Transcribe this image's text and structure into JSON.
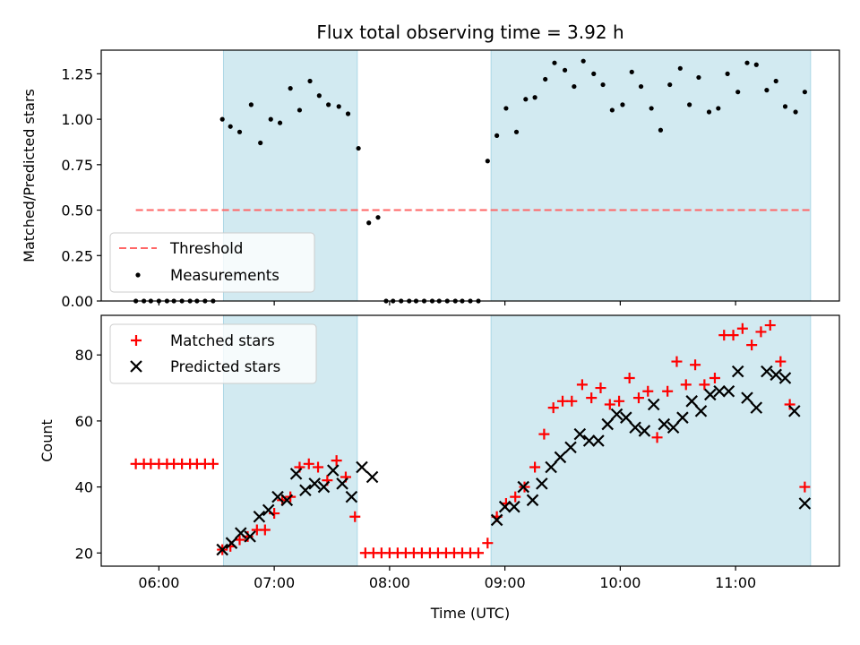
{
  "title": "Flux total observing time = 3.92 h",
  "colors": {
    "shade": "#add8e6",
    "threshold": "#ff6666",
    "matched": "#ff0000",
    "predicted": "#000000",
    "measurement": "#000000"
  },
  "x_axis": {
    "label": "Time (UTC)",
    "range_hours": [
      5.5,
      11.9
    ],
    "ticks": [
      {
        "value": 6,
        "label": "06:00"
      },
      {
        "value": 7,
        "label": "07:00"
      },
      {
        "value": 8,
        "label": "08:00"
      },
      {
        "value": 9,
        "label": "09:00"
      },
      {
        "value": 10,
        "label": "10:00"
      },
      {
        "value": 11,
        "label": "11:00"
      }
    ]
  },
  "chart_data": [
    {
      "type": "scatter",
      "panel": "top",
      "ylabel": "Matched/Predicted stars",
      "ylim": [
        0,
        1.38
      ],
      "yticks": [
        {
          "value": 0,
          "label": "0.00"
        },
        {
          "value": 0.25,
          "label": "0.25"
        },
        {
          "value": 0.5,
          "label": "0.50"
        },
        {
          "value": 0.75,
          "label": "0.75"
        },
        {
          "value": 1.0,
          "label": "1.00"
        },
        {
          "value": 1.25,
          "label": "1.25"
        }
      ],
      "shaded_intervals": [
        [
          6.56,
          7.72
        ],
        [
          8.88,
          11.65
        ]
      ],
      "legend_position": "lower-left",
      "threshold": {
        "name": "Threshold",
        "y": 0.5,
        "x": [
          5.8,
          11.65
        ]
      },
      "series": [
        {
          "name": "Measurements",
          "points": [
            [
              5.8,
              0
            ],
            [
              5.87,
              0
            ],
            [
              5.93,
              0
            ],
            [
              6.0,
              0
            ],
            [
              6.07,
              0
            ],
            [
              6.13,
              0
            ],
            [
              6.2,
              0
            ],
            [
              6.27,
              0
            ],
            [
              6.33,
              0
            ],
            [
              6.4,
              0
            ],
            [
              6.47,
              0
            ],
            [
              6.55,
              1.0
            ],
            [
              6.62,
              0.96
            ],
            [
              6.7,
              0.93
            ],
            [
              6.8,
              1.08
            ],
            [
              6.88,
              0.87
            ],
            [
              6.97,
              1.0
            ],
            [
              7.05,
              0.98
            ],
            [
              7.14,
              1.17
            ],
            [
              7.22,
              1.05
            ],
            [
              7.31,
              1.21
            ],
            [
              7.39,
              1.13
            ],
            [
              7.47,
              1.08
            ],
            [
              7.56,
              1.07
            ],
            [
              7.64,
              1.03
            ],
            [
              7.73,
              0.84
            ],
            [
              7.82,
              0.43
            ],
            [
              7.9,
              0.46
            ],
            [
              7.97,
              0
            ],
            [
              8.03,
              0
            ],
            [
              8.1,
              0
            ],
            [
              8.17,
              0
            ],
            [
              8.23,
              0
            ],
            [
              8.3,
              0
            ],
            [
              8.37,
              0
            ],
            [
              8.43,
              0
            ],
            [
              8.5,
              0
            ],
            [
              8.57,
              0
            ],
            [
              8.63,
              0
            ],
            [
              8.7,
              0
            ],
            [
              8.77,
              0
            ],
            [
              8.85,
              0.77
            ],
            [
              8.93,
              0.91
            ],
            [
              9.01,
              1.06
            ],
            [
              9.1,
              0.93
            ],
            [
              9.18,
              1.11
            ],
            [
              9.26,
              1.12
            ],
            [
              9.35,
              1.22
            ],
            [
              9.43,
              1.31
            ],
            [
              9.52,
              1.27
            ],
            [
              9.6,
              1.18
            ],
            [
              9.68,
              1.32
            ],
            [
              9.77,
              1.25
            ],
            [
              9.85,
              1.19
            ],
            [
              9.93,
              1.05
            ],
            [
              10.02,
              1.08
            ],
            [
              10.1,
              1.26
            ],
            [
              10.18,
              1.18
            ],
            [
              10.27,
              1.06
            ],
            [
              10.35,
              0.94
            ],
            [
              10.43,
              1.19
            ],
            [
              10.52,
              1.28
            ],
            [
              10.6,
              1.08
            ],
            [
              10.68,
              1.23
            ],
            [
              10.77,
              1.04
            ],
            [
              10.85,
              1.06
            ],
            [
              10.93,
              1.25
            ],
            [
              11.02,
              1.15
            ],
            [
              11.1,
              1.31
            ],
            [
              11.18,
              1.3
            ],
            [
              11.27,
              1.16
            ],
            [
              11.35,
              1.21
            ],
            [
              11.43,
              1.07
            ],
            [
              11.52,
              1.04
            ],
            [
              11.6,
              1.15
            ]
          ]
        }
      ]
    },
    {
      "type": "scatter",
      "panel": "bottom",
      "ylabel": "Count",
      "ylim": [
        16,
        92
      ],
      "yticks": [
        {
          "value": 20,
          "label": "20"
        },
        {
          "value": 40,
          "label": "40"
        },
        {
          "value": 60,
          "label": "60"
        },
        {
          "value": 80,
          "label": "80"
        }
      ],
      "shaded_intervals": [
        [
          6.56,
          7.72
        ],
        [
          8.88,
          11.65
        ]
      ],
      "legend_position": "upper-left",
      "series": [
        {
          "name": "Matched stars",
          "marker": "plus",
          "points": [
            [
              5.8,
              47
            ],
            [
              5.87,
              47
            ],
            [
              5.93,
              47
            ],
            [
              6.0,
              47
            ],
            [
              6.07,
              47
            ],
            [
              6.13,
              47
            ],
            [
              6.2,
              47
            ],
            [
              6.27,
              47
            ],
            [
              6.33,
              47
            ],
            [
              6.4,
              47
            ],
            [
              6.47,
              47
            ],
            [
              6.55,
              21
            ],
            [
              6.62,
              22
            ],
            [
              6.7,
              24
            ],
            [
              6.77,
              25
            ],
            [
              6.85,
              27
            ],
            [
              6.92,
              27
            ],
            [
              7.0,
              32
            ],
            [
              7.07,
              36
            ],
            [
              7.14,
              37
            ],
            [
              7.22,
              46
            ],
            [
              7.3,
              47
            ],
            [
              7.38,
              46
            ],
            [
              7.46,
              42
            ],
            [
              7.54,
              48
            ],
            [
              7.62,
              43
            ],
            [
              7.7,
              31
            ],
            [
              7.79,
              20
            ],
            [
              7.86,
              20
            ],
            [
              7.93,
              20
            ],
            [
              8.0,
              20
            ],
            [
              8.07,
              20
            ],
            [
              8.14,
              20
            ],
            [
              8.21,
              20
            ],
            [
              8.28,
              20
            ],
            [
              8.35,
              20
            ],
            [
              8.42,
              20
            ],
            [
              8.49,
              20
            ],
            [
              8.56,
              20
            ],
            [
              8.63,
              20
            ],
            [
              8.7,
              20
            ],
            [
              8.77,
              20
            ],
            [
              8.85,
              23
            ],
            [
              8.93,
              31
            ],
            [
              9.01,
              35
            ],
            [
              9.09,
              37
            ],
            [
              9.17,
              40
            ],
            [
              9.26,
              46
            ],
            [
              9.34,
              56
            ],
            [
              9.42,
              64
            ],
            [
              9.5,
              66
            ],
            [
              9.58,
              66
            ],
            [
              9.67,
              71
            ],
            [
              9.75,
              67
            ],
            [
              9.83,
              70
            ],
            [
              9.91,
              65
            ],
            [
              9.99,
              66
            ],
            [
              10.08,
              73
            ],
            [
              10.16,
              67
            ],
            [
              10.24,
              69
            ],
            [
              10.32,
              55
            ],
            [
              10.41,
              69
            ],
            [
              10.49,
              78
            ],
            [
              10.57,
              71
            ],
            [
              10.65,
              77
            ],
            [
              10.73,
              71
            ],
            [
              10.82,
              73
            ],
            [
              10.9,
              86
            ],
            [
              10.98,
              86
            ],
            [
              11.06,
              88
            ],
            [
              11.14,
              83
            ],
            [
              11.22,
              87
            ],
            [
              11.3,
              89
            ],
            [
              11.39,
              78
            ],
            [
              11.47,
              65
            ],
            [
              11.6,
              40
            ]
          ]
        },
        {
          "name": "Predicted stars",
          "marker": "x",
          "points": [
            [
              6.55,
              21
            ],
            [
              6.63,
              23
            ],
            [
              6.71,
              26
            ],
            [
              6.79,
              25
            ],
            [
              6.87,
              31
            ],
            [
              6.95,
              33
            ],
            [
              7.03,
              37
            ],
            [
              7.11,
              36
            ],
            [
              7.19,
              44
            ],
            [
              7.27,
              39
            ],
            [
              7.35,
              41
            ],
            [
              7.43,
              40
            ],
            [
              7.51,
              45
            ],
            [
              7.59,
              41
            ],
            [
              7.67,
              37
            ],
            [
              7.76,
              46
            ],
            [
              7.85,
              43
            ],
            [
              8.93,
              30
            ],
            [
              9.0,
              34
            ],
            [
              9.08,
              34
            ],
            [
              9.16,
              40
            ],
            [
              9.24,
              36
            ],
            [
              9.32,
              41
            ],
            [
              9.4,
              46
            ],
            [
              9.48,
              49
            ],
            [
              9.57,
              52
            ],
            [
              9.65,
              56
            ],
            [
              9.73,
              54
            ],
            [
              9.81,
              54
            ],
            [
              9.89,
              59
            ],
            [
              9.97,
              62
            ],
            [
              10.05,
              61
            ],
            [
              10.13,
              58
            ],
            [
              10.21,
              57
            ],
            [
              10.29,
              65
            ],
            [
              10.38,
              59
            ],
            [
              10.46,
              58
            ],
            [
              10.54,
              61
            ],
            [
              10.62,
              66
            ],
            [
              10.7,
              63
            ],
            [
              10.78,
              68
            ],
            [
              10.86,
              69
            ],
            [
              10.94,
              69
            ],
            [
              11.02,
              75
            ],
            [
              11.1,
              67
            ],
            [
              11.18,
              64
            ],
            [
              11.27,
              75
            ],
            [
              11.35,
              74
            ],
            [
              11.43,
              73
            ],
            [
              11.51,
              63
            ],
            [
              11.6,
              35
            ]
          ]
        }
      ]
    }
  ]
}
